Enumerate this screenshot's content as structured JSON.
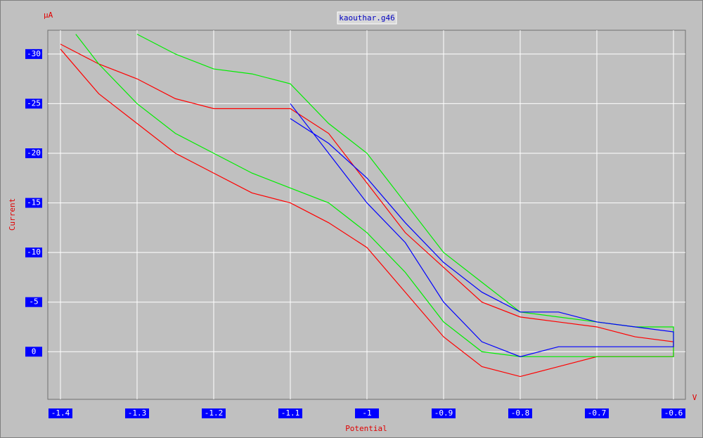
{
  "chart_data": {
    "type": "line",
    "title": "kaouthar.g46",
    "y_unit": "µA",
    "ylabel": "Current",
    "xlabel": "Potential",
    "x_unit": "V",
    "xlim": [
      -1.4165,
      -0.5844
    ],
    "ylim": [
      4.8,
      -32.4
    ],
    "xticks": [
      -1.4,
      -1.3,
      -1.2,
      -1.1,
      -1,
      -0.9,
      -0.8,
      -0.7,
      -0.6
    ],
    "yticks": [
      -30,
      -25,
      -20,
      -15,
      -10,
      -5,
      0
    ],
    "grid": true,
    "series": [
      {
        "color": "#ff0000",
        "x": [
          -1.4,
          -1.35,
          -1.3,
          -1.25,
          -1.2,
          -1.15,
          -1.1,
          -1.05,
          -1.0,
          -0.95,
          -0.9,
          -0.85,
          -0.8,
          -0.75,
          -0.7,
          -0.65,
          -0.6,
          -0.6,
          -0.65,
          -0.7,
          -0.75,
          -0.8,
          -0.85,
          -0.9,
          -0.95,
          -1.0,
          -1.05,
          -1.1,
          -1.15,
          -1.2,
          -1.25,
          -1.3,
          -1.35,
          -1.4
        ],
        "values": [
          -30.5,
          -26,
          -23,
          -20,
          -18,
          -16,
          -15,
          -13,
          -10.5,
          -6,
          -1.5,
          1.5,
          2.5,
          1.5,
          0.5,
          0.5,
          0.5,
          -1,
          -1.5,
          -2.5,
          -3,
          -3.5,
          -5,
          -8.5,
          -12,
          -17,
          -22,
          -24.5,
          -24.5,
          -24.5,
          -25.5,
          -27.5,
          -29,
          -31
        ]
      },
      {
        "color": "#00ee00",
        "x": [
          -1.38,
          -1.35,
          -1.3,
          -1.25,
          -1.2,
          -1.15,
          -1.1,
          -1.05,
          -1.0,
          -0.95,
          -0.9,
          -0.85,
          -0.8,
          -0.75,
          -0.7,
          -0.65,
          -0.6,
          -0.6,
          -0.65,
          -0.7,
          -0.75,
          -0.8,
          -0.85,
          -0.9,
          -0.95,
          -1.0,
          -1.05,
          -1.1,
          -1.15,
          -1.2,
          -1.25,
          -1.3
        ],
        "values": [
          -32,
          -29,
          -25,
          -22,
          -20,
          -18,
          -16.5,
          -15,
          -12,
          -8,
          -3,
          0,
          0.5,
          0.5,
          0.5,
          0.5,
          0.5,
          -2.5,
          -2.5,
          -3,
          -3.5,
          -4,
          -7,
          -10,
          -15,
          -20,
          -23,
          -27,
          -28,
          -28.5,
          -30,
          -32
        ]
      },
      {
        "color": "#0000ff",
        "x": [
          -1.1,
          -1.05,
          -1.0,
          -0.95,
          -0.9,
          -0.85,
          -0.8,
          -0.75,
          -0.7,
          -0.65,
          -0.6,
          -0.6,
          -0.65,
          -0.7,
          -0.75,
          -0.8,
          -0.85,
          -0.9,
          -0.95,
          -1.0,
          -1.05,
          -1.1
        ],
        "values": [
          -25,
          -20,
          -15,
          -11,
          -5,
          -1,
          0.5,
          -0.5,
          -0.5,
          -0.5,
          -0.5,
          -2,
          -2.5,
          -3,
          -4,
          -4,
          -6,
          -9,
          -13,
          -17.5,
          -21,
          -23.5
        ]
      }
    ]
  }
}
